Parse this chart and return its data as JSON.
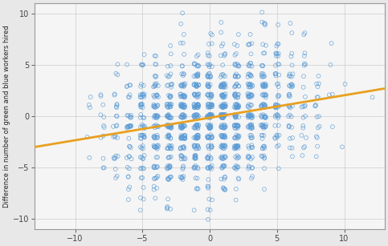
{
  "xlim": [
    -13,
    13
  ],
  "ylim": [
    -11,
    11
  ],
  "xticks": [
    -10,
    -5,
    0,
    5,
    10
  ],
  "yticks": [
    -10,
    -5,
    0,
    5,
    10
  ],
  "ylabel": "Difference in number of green and blue workers hired",
  "scatter_color": "#5b9bd5",
  "marker_size": 3.5,
  "regression_color": "#e8a020",
  "regression_lw": 2.0,
  "regression_x0": -13,
  "regression_x1": 13,
  "regression_y0": -3.0,
  "regression_y1": 2.7,
  "background_color": "#e8e8e8",
  "axes_color": "#f5f5f5",
  "seed": 42,
  "n_points": 1400,
  "jitter_std": 0.18
}
